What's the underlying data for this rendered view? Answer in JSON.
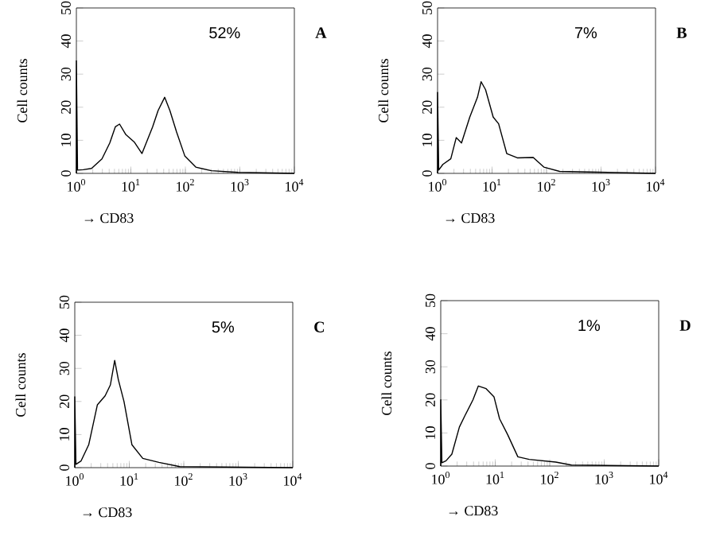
{
  "chart_data": [
    {
      "type": "line",
      "xlabel": "→ CD83",
      "ylabel": "Cell counts",
      "log": "x",
      "color": "#000000",
      "xlim": [
        1,
        10000
      ],
      "ylim": [
        0,
        50
      ],
      "xticks": [
        {
          "value": 1,
          "label": "10$^{0}$"
        },
        {
          "value": 10,
          "label": "10$^{1}$"
        },
        {
          "value": 100,
          "label": "10$^{2}$"
        },
        {
          "value": 1000,
          "label": "10$^{3}$"
        },
        {
          "value": 10000,
          "label": "10$^{4}$"
        }
      ],
      "yticks": [
        0,
        10,
        20,
        30,
        40,
        50
      ],
      "annotations": [
        "52%",
        "A"
      ],
      "x": [
        1,
        1,
        1.05,
        1.34,
        1.9,
        2.95,
        4.1,
        5.2,
        6.2,
        8.1,
        11.5,
        16,
        25,
        31.6,
        41.7,
        52,
        69,
        98,
        155,
        300,
        930,
        10000
      ],
      "values": [
        0,
        34,
        1,
        1.1,
        1.5,
        4.4,
        9.2,
        14.1,
        14.9,
        11.7,
        9.5,
        6,
        14,
        19,
        23,
        19,
        12.5,
        5.2,
        1.9,
        0.8,
        0.3,
        0
      ]
    },
    {
      "type": "line",
      "xlabel": "→ CD83",
      "ylabel": "Cell counts",
      "log": "x",
      "color": "#000000",
      "xlim": [
        1,
        10000
      ],
      "ylim": [
        0,
        50
      ],
      "xticks": [
        {
          "value": 1,
          "label": "10$^{0}$"
        },
        {
          "value": 10,
          "label": "10$^{1}$"
        },
        {
          "value": 100,
          "label": "10$^{2}$"
        },
        {
          "value": 1000,
          "label": "10$^{3}$"
        },
        {
          "value": 10000,
          "label": "10$^{4}$"
        }
      ],
      "yticks": [
        0,
        10,
        20,
        30,
        40,
        50
      ],
      "annotations": [
        "7%",
        "B"
      ],
      "x": [
        1,
        1,
        1.05,
        1.25,
        1.75,
        2.2,
        2.75,
        3.9,
        5.4,
        6.3,
        7.6,
        10.5,
        13.2,
        18.6,
        29,
        57,
        89,
        174,
        10000
      ],
      "values": [
        0,
        24.5,
        1,
        2.7,
        4.4,
        10.8,
        9.2,
        17,
        23,
        27.7,
        25.3,
        17,
        15,
        6,
        4.7,
        4.8,
        1.9,
        0.6,
        0
      ]
    },
    {
      "type": "line",
      "xlabel": "→ CD83",
      "ylabel": "Cell counts",
      "log": "x",
      "color": "#000000",
      "xlim": [
        1,
        10000
      ],
      "ylim": [
        0,
        50
      ],
      "xticks": [
        {
          "value": 1,
          "label": "10$^{0}$"
        },
        {
          "value": 10,
          "label": "10$^{1}$"
        },
        {
          "value": 100,
          "label": "10$^{2}$"
        },
        {
          "value": 1000,
          "label": "10$^{3}$"
        },
        {
          "value": 10000,
          "label": "10$^{4}$"
        }
      ],
      "yticks": [
        0,
        10,
        20,
        30,
        40,
        50
      ],
      "annotations": [
        "5%",
        "C"
      ],
      "x": [
        1,
        1,
        1.05,
        1.3,
        1.8,
        2.6,
        3.6,
        4.5,
        5.4,
        6.3,
        8,
        11.2,
        17.7,
        35,
        85,
        10000
      ],
      "values": [
        0,
        21.4,
        1,
        2,
        6.9,
        19,
        21.7,
        25,
        32.4,
        26.6,
        20,
        6.9,
        2.8,
        1.6,
        0.3,
        0
      ]
    },
    {
      "type": "line",
      "xlabel": "→ CD83",
      "ylabel": "Cell counts",
      "log": "x",
      "color": "#000000",
      "xlim": [
        1,
        10000
      ],
      "ylim": [
        0,
        50
      ],
      "xticks": [
        {
          "value": 1,
          "label": "10$^{0}$"
        },
        {
          "value": 10,
          "label": "10$^{1}$"
        },
        {
          "value": 100,
          "label": "10$^{2}$"
        },
        {
          "value": 1000,
          "label": "10$^{3}$"
        },
        {
          "value": 10000,
          "label": "10$^{4}$"
        }
      ],
      "yticks": [
        0,
        10,
        20,
        30,
        40,
        50
      ],
      "annotations": [
        "1%",
        "D"
      ],
      "x": [
        1,
        1,
        1.05,
        1.25,
        1.6,
        2.2,
        2.75,
        3.9,
        4.9,
        6.8,
        9.5,
        12,
        17,
        26,
        42,
        129,
        251,
        10000
      ],
      "values": [
        0,
        20,
        1,
        1.6,
        3.6,
        11.8,
        15.1,
        20,
        24.2,
        23.4,
        20.9,
        14.3,
        9.4,
        2.8,
        2,
        1.2,
        0.3,
        0
      ]
    }
  ]
}
